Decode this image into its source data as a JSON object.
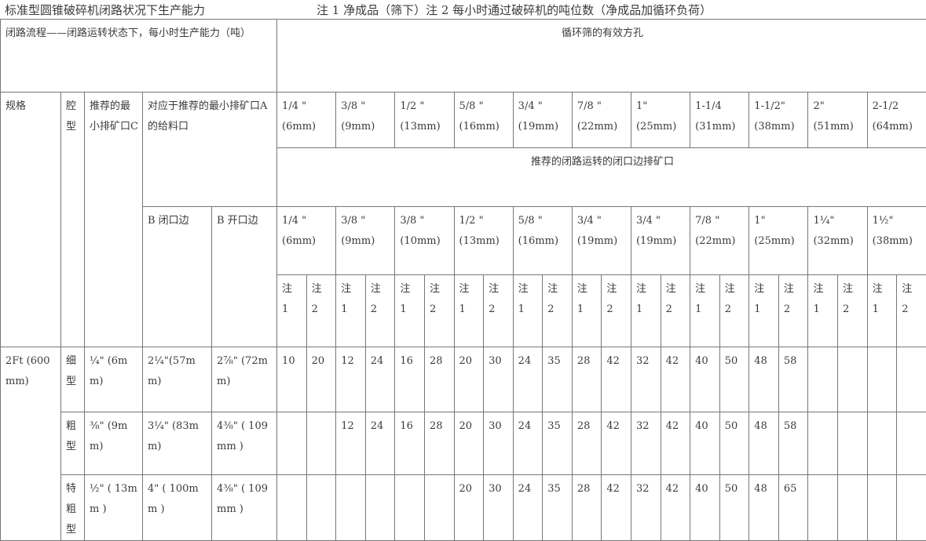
{
  "title": "标准型圆锥破碎机闭路状况下生产能力",
  "note": "注 1 净成品（筛下）注 2 每小时通过破碎机的吨位数（净成品加循环负荷）",
  "header": {
    "process": "闭路流程——闭路运转状态下，每小时生产能力（吨）",
    "screen_title": "循环筛的有效方孔",
    "spec": "规格",
    "cavity": "腔型",
    "min_setting": "推荐的最小排矿口C",
    "feed_opening": "对应于推荐的最小排矿口A的给料口",
    "css_title": "推荐的闭路运转的闭口边排矿口",
    "b_closed": "B 闭口边",
    "b_open": "B 开口边",
    "note1": "注\n1",
    "note2": "注\n2"
  },
  "screen_sizes": [
    "1/4 \"\n(6mm)",
    "3/8 \"\n(9mm)",
    "1/2 \"\n(13mm)",
    "5/8 \"\n(16mm)",
    "3/4 \"\n(19mm)",
    "7/8 \"\n(22mm)",
    "1\"\n(25mm)",
    "1-1/4\n(31mm)",
    "1-1/2\"\n(38mm)",
    "2\"\n(51mm)",
    "2-1/2\n(64mm)"
  ],
  "css_sizes": [
    "1/4 \"\n(6mm)",
    "3/8 \"\n(9mm)",
    "3/8 \"\n(10mm)",
    "1/2 \"\n(13mm)",
    "5/8 \"\n(16mm)",
    "3/4 \"\n(19mm)",
    "3/4 \"\n(19mm)",
    "7/8 \"\n(22mm)",
    "1\"\n(25mm)",
    "1¼\"\n(32mm)",
    "1½\"\n(38mm)"
  ],
  "spec_value": "2Ft (600mm)",
  "rows": [
    {
      "cavity": "细型",
      "c": "¼\" (6mm)",
      "b_closed": "2¼\"(57mm)",
      "b_open": "2⅞\" (72mm)",
      "values": [
        "10",
        "20",
        "12",
        "24",
        "16",
        "28",
        "20",
        "30",
        "24",
        "35",
        "28",
        "42",
        "32",
        "42",
        "40",
        "50",
        "48",
        "58",
        "",
        "",
        "",
        ""
      ]
    },
    {
      "cavity": "粗型",
      "c": "⅜\" (9mm)",
      "b_closed": "3¼\" (83mm)",
      "b_open": "4⅜\" ( 109mm )",
      "values": [
        "",
        "",
        "12",
        "24",
        "16",
        "28",
        "20",
        "30",
        "24",
        "35",
        "28",
        "42",
        "32",
        "42",
        "40",
        "50",
        "48",
        "58",
        "",
        "",
        "",
        ""
      ]
    },
    {
      "cavity": "特粗型",
      "c": "½\" ( 13mm )",
      "b_closed": "4\" ( 100mm )",
      "b_open": "4⅜\" ( 109mm )",
      "values": [
        "",
        "",
        "",
        "",
        "",
        "",
        "20",
        "30",
        "24",
        "35",
        "28",
        "42",
        "32",
        "42",
        "40",
        "50",
        "48",
        "65",
        "",
        "",
        "",
        ""
      ]
    }
  ]
}
